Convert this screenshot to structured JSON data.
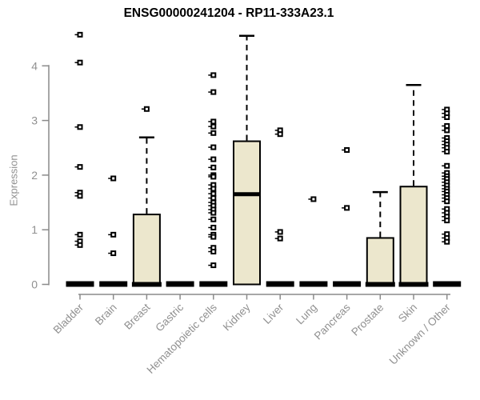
{
  "chart_data": {
    "type": "boxplot",
    "title": "ENSG00000241204 - RP11-333A23.1",
    "ylabel": "Expression",
    "xlabel": "",
    "yticks": [
      0,
      1,
      2,
      3,
      4
    ],
    "ylim": [
      0,
      4.65
    ],
    "grid": false,
    "legend": "none",
    "categories": [
      "Bladder",
      "Brain",
      "Breast",
      "Gastric",
      "Hematopoietic cells",
      "Kidney",
      "Liver",
      "Lung",
      "Pancreas",
      "Prostate",
      "Skin",
      "Unknown / Other"
    ],
    "boxes": [
      {
        "category": "Bladder",
        "q1": 0,
        "median": 0,
        "q3": 0,
        "whisker_low": 0,
        "whisker_high": 0,
        "outliers": [
          4.57,
          4.06,
          2.88,
          2.15,
          1.68,
          1.62,
          0.91,
          0.79,
          0.72
        ]
      },
      {
        "category": "Brain",
        "q1": 0,
        "median": 0,
        "q3": 0,
        "whisker_low": 0,
        "whisker_high": 0,
        "outliers": [
          1.94,
          0.91,
          0.57
        ]
      },
      {
        "category": "Breast",
        "q1": 0,
        "median": 0,
        "q3": 1.28,
        "whisker_low": 0,
        "whisker_high": 2.69,
        "outliers": [
          3.21
        ]
      },
      {
        "category": "Gastric",
        "q1": 0,
        "median": 0,
        "q3": 0,
        "whisker_low": 0,
        "whisker_high": 0,
        "outliers": []
      },
      {
        "category": "Hematopoietic cells",
        "q1": 0,
        "median": 0,
        "q3": 0,
        "whisker_low": 0,
        "whisker_high": 0,
        "outliers": [
          3.83,
          3.52,
          2.98,
          2.89,
          2.77,
          2.51,
          2.29,
          2.14,
          2.0,
          1.97,
          1.82,
          1.75,
          1.66,
          1.58,
          1.5,
          1.44,
          1.37,
          1.31,
          1.19,
          1.04,
          0.91,
          0.87,
          0.67,
          0.6,
          0.35
        ]
      },
      {
        "category": "Kidney",
        "q1": 0,
        "median": 1.65,
        "q3": 2.62,
        "whisker_low": 0,
        "whisker_high": 4.55,
        "outliers": []
      },
      {
        "category": "Liver",
        "q1": 0,
        "median": 0,
        "q3": 0,
        "whisker_low": 0,
        "whisker_high": 0,
        "outliers": [
          2.82,
          2.75,
          0.96,
          0.84
        ]
      },
      {
        "category": "Lung",
        "q1": 0,
        "median": 0,
        "q3": 0,
        "whisker_low": 0,
        "whisker_high": 0,
        "outliers": [
          1.56
        ]
      },
      {
        "category": "Pancreas",
        "q1": 0,
        "median": 0,
        "q3": 0,
        "whisker_low": 0,
        "whisker_high": 0,
        "outliers": [
          2.46,
          1.4
        ]
      },
      {
        "category": "Prostate",
        "q1": 0,
        "median": 0,
        "q3": 0.85,
        "whisker_low": 0,
        "whisker_high": 1.69,
        "outliers": []
      },
      {
        "category": "Skin",
        "q1": 0,
        "median": 0,
        "q3": 1.79,
        "whisker_low": 0,
        "whisker_high": 3.65,
        "outliers": []
      },
      {
        "category": "Unknown / Other",
        "q1": 0,
        "median": 0,
        "q3": 0,
        "whisker_low": 0,
        "whisker_high": 0,
        "outliers": [
          3.2,
          3.13,
          3.06,
          2.9,
          2.82,
          2.68,
          2.62,
          2.56,
          2.5,
          2.43,
          2.17,
          2.04,
          1.98,
          1.93,
          1.87,
          1.81,
          1.75,
          1.7,
          1.64,
          1.58,
          1.52,
          1.38,
          1.31,
          1.24,
          1.17,
          0.92,
          0.85,
          0.78
        ]
      }
    ],
    "colors": {
      "box_fill": "#ece7cd",
      "box_stroke": "#000000",
      "median": "#000000",
      "outlier": "#000000",
      "axis": "#8a8a8a",
      "tick_text": "#909090",
      "title_text": "#000000",
      "background": "#ffffff"
    }
  }
}
